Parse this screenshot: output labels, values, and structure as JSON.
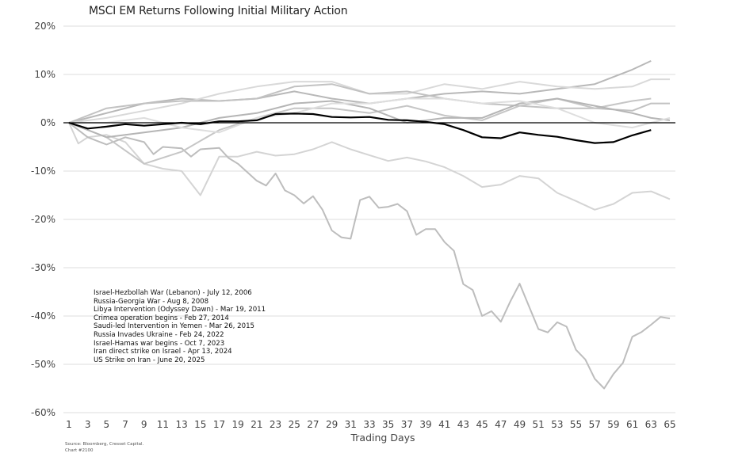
{
  "chart_data": {
    "type": "line",
    "title": "MSCI EM Returns Following Initial Military Action",
    "xlabel": "Trading Days",
    "ylabel": "",
    "xlim": [
      1,
      65
    ],
    "ylim": [
      -60,
      20
    ],
    "yticks": [
      "20%",
      "10%",
      "0%",
      "-10%",
      "-20%",
      "-30%",
      "-40%",
      "-50%",
      "-60%"
    ],
    "ytick_values": [
      20,
      10,
      0,
      -10,
      -20,
      -30,
      -40,
      -50,
      -60
    ],
    "xticks": [
      1,
      3,
      5,
      7,
      9,
      11,
      13,
      15,
      17,
      19,
      21,
      23,
      25,
      27,
      29,
      31,
      33,
      35,
      37,
      39,
      41,
      43,
      45,
      47,
      49,
      51,
      53,
      55,
      57,
      59,
      61,
      63,
      65
    ],
    "grid": "horizontal",
    "legend_placement": "bottom-left",
    "series": [
      {
        "name": "Israel-Hezbollah War (Lebanon) - July 12, 2006",
        "color": "#d4d4d4",
        "x": [
          1,
          2,
          3,
          5,
          7,
          9,
          11,
          13,
          15,
          17,
          19,
          21,
          23,
          25,
          27,
          29,
          31,
          33,
          35,
          37,
          39,
          41,
          43,
          45,
          47,
          49,
          51,
          53,
          55,
          57,
          59,
          61,
          63,
          65
        ],
        "y": [
          0,
          -4.3,
          -3,
          -2.5,
          -4,
          -8.5,
          -9.5,
          -10,
          -15,
          -7,
          -7,
          -6,
          -6.8,
          -6.5,
          -5.5,
          -4,
          -5.5,
          -6.7,
          -7.9,
          -7.2,
          -8,
          -9.2,
          -11,
          -13.3,
          -12.8,
          -11,
          -11.5,
          -14.5,
          -16.2,
          -18,
          -16.8,
          -14.5,
          -14.2,
          -15.8
        ]
      },
      {
        "name": "Russia-Georgia War - Aug 8, 2008",
        "color": "#bdbdbd",
        "x": [
          1,
          3,
          5,
          7,
          9,
          10,
          11,
          13,
          14,
          15,
          17,
          18,
          19,
          21,
          22,
          23,
          24,
          25,
          26,
          27,
          28,
          29,
          30,
          31,
          32,
          33,
          34,
          35,
          36,
          37,
          38,
          39,
          40,
          41,
          42,
          43,
          44,
          45,
          46,
          47,
          48,
          49,
          50,
          51,
          52,
          53,
          54,
          55,
          56,
          57,
          58,
          59,
          60,
          61,
          62,
          63,
          64,
          65
        ],
        "y": [
          0,
          -3,
          -4.5,
          -3,
          -4,
          -6.5,
          -5,
          -5.3,
          -7,
          -5.5,
          -5.2,
          -7.3,
          -8.5,
          -12,
          -13,
          -10.5,
          -14,
          -15,
          -16.7,
          -15.2,
          -18,
          -22.3,
          -23.7,
          -24,
          -16,
          -15.3,
          -17.6,
          -17.4,
          -16.8,
          -18.3,
          -23.2,
          -22,
          -22,
          -24.7,
          -26.5,
          -33.4,
          -34.6,
          -40,
          -39,
          -41.2,
          -37,
          -33.3,
          -38,
          -42.7,
          -43.4,
          -41.3,
          -42.2,
          -47,
          -49,
          -53,
          -55,
          -52,
          -49.7,
          -44.3,
          -43.3,
          -41.8,
          -40.2,
          -40.5
        ]
      },
      {
        "name": "Libya Intervention (Odyssey Dawn) - Mar 19, 2011",
        "color": "#b8b8b8",
        "x": [
          1,
          5,
          9,
          13,
          17,
          21,
          25,
          29,
          33,
          37,
          41,
          45,
          49,
          53,
          57,
          61,
          63
        ],
        "y": [
          0,
          2,
          4,
          5,
          4.5,
          5,
          6.5,
          5,
          4,
          5,
          6,
          6.5,
          6,
          7,
          8,
          11,
          12.8
        ]
      },
      {
        "name": "Crimea operation begins - Feb 27, 2014",
        "color": "#d9d9d9",
        "x": [
          1,
          5,
          9,
          13,
          17,
          21,
          25,
          29,
          33,
          37,
          41,
          45,
          49,
          53,
          57,
          61,
          63,
          65
        ],
        "y": [
          0,
          1,
          2.5,
          4,
          6,
          7.5,
          8.5,
          8.5,
          6,
          6,
          8,
          7,
          8.5,
          7.5,
          7,
          7.5,
          9,
          9
        ]
      },
      {
        "name": "Saudi-led Intervention in Yemen - Mar 26, 2015",
        "color": "#c2c2c2",
        "x": [
          1,
          5,
          9,
          13,
          17,
          21,
          25,
          29,
          33,
          37,
          41,
          45,
          49,
          53,
          57,
          61,
          63,
          65
        ],
        "y": [
          0,
          3,
          4,
          4.5,
          4.5,
          5,
          7.5,
          8,
          6,
          6.5,
          5,
          4,
          3.5,
          3,
          3,
          2.5,
          4,
          4
        ]
      },
      {
        "name": "Russia Invades Ukraine - Feb 24, 2022",
        "color": "#c6c6c6",
        "x": [
          1,
          5,
          9,
          13,
          17,
          21,
          25,
          29,
          33,
          37,
          41,
          45,
          49,
          53,
          57,
          61,
          63
        ],
        "y": [
          0,
          -3,
          -8.5,
          -6,
          -1.5,
          1,
          3,
          3,
          2,
          3.5,
          1.5,
          0.5,
          3.5,
          5,
          3,
          4.5,
          5
        ]
      },
      {
        "name": "Israel-Hamas war begins - Oct 7, 2023",
        "color": "#b5b5b5",
        "x": [
          1,
          5,
          9,
          13,
          17,
          21,
          25,
          29,
          33,
          37,
          41,
          45,
          49,
          53,
          57,
          61,
          63,
          65
        ],
        "y": [
          0,
          -3,
          -2,
          -1,
          1,
          2,
          4,
          4.5,
          3,
          0,
          1,
          1,
          4,
          5,
          3.5,
          2,
          1,
          0.5
        ]
      },
      {
        "name": "Iran direct strike on Israel - Apr 13, 2024",
        "color": "#dedede",
        "x": [
          1,
          5,
          9,
          13,
          17,
          21,
          25,
          29,
          33,
          37,
          41,
          45,
          49,
          53,
          57,
          61,
          63,
          65
        ],
        "y": [
          0,
          0,
          1,
          -1,
          -2,
          1,
          2,
          4,
          4,
          5,
          5,
          4,
          4.5,
          3,
          0,
          -1,
          0,
          1
        ]
      },
      {
        "name": "US Strike on Iran - June 20, 2025",
        "color": "#000000",
        "x": [
          1,
          3,
          5,
          7,
          9,
          11,
          13,
          15,
          17,
          19,
          21,
          23,
          25,
          27,
          29,
          31,
          33,
          35,
          37,
          39,
          41,
          43,
          45,
          47,
          49,
          51,
          53,
          55,
          57,
          59,
          61,
          63
        ],
        "y": [
          0,
          -1.2,
          -0.8,
          -0.3,
          -0.6,
          -0.3,
          0,
          -0.3,
          0.3,
          0.3,
          0.5,
          1.8,
          1.9,
          1.8,
          1.2,
          1.1,
          1.2,
          0.6,
          0.5,
          0.2,
          -0.3,
          -1.5,
          -3,
          -3.2,
          -2,
          -2.5,
          -2.9,
          -3.6,
          -4.2,
          -4,
          -2.6,
          -1.5
        ]
      }
    ]
  },
  "source": {
    "line1": "Source: Bloomberg, Cresset Capital.",
    "line2": "Chart #2100"
  }
}
